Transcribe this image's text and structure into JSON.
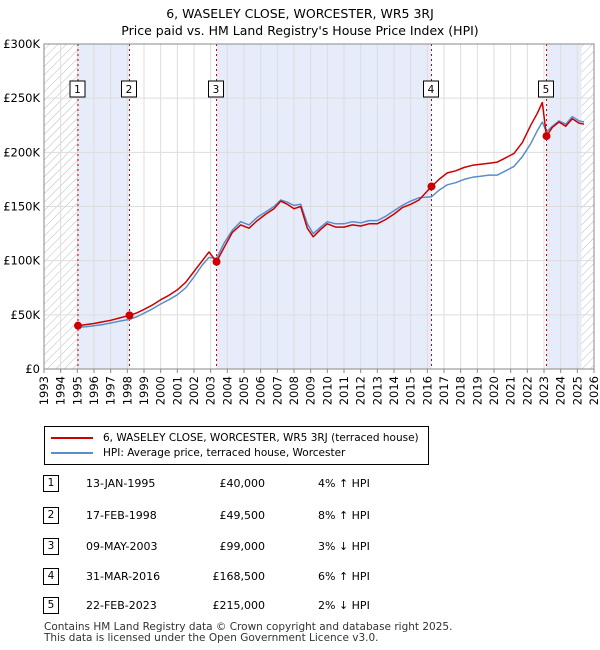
{
  "header": {
    "title_line1": "6, WASELEY CLOSE, WORCESTER, WR5 3RJ",
    "title_line2": "Price paid vs. HM Land Registry's House Price Index (HPI)"
  },
  "colors": {
    "property": "#cc0000",
    "hpi": "#5b8ec8",
    "shade": "#e6ecfa",
    "grid": "#dddddd",
    "hatch": "#bbbbbb"
  },
  "chart_data": {
    "type": "line",
    "title": "6, WASELEY CLOSE, WORCESTER, WR5 3RJ",
    "subtitle": "Price paid vs. HM Land Registry's House Price Index (HPI)",
    "xlim": [
      1993,
      2026
    ],
    "ylim": [
      0,
      300000
    ],
    "y_ticks": [
      0,
      50000,
      100000,
      150000,
      200000,
      250000,
      300000
    ],
    "y_tick_labels": [
      "£0",
      "£50K",
      "£100K",
      "£150K",
      "£200K",
      "£250K",
      "£300K"
    ],
    "x_ticks": [
      1993,
      1994,
      1995,
      1996,
      1997,
      1998,
      1999,
      2000,
      2001,
      2002,
      2003,
      2004,
      2005,
      2006,
      2007,
      2008,
      2009,
      2010,
      2011,
      2012,
      2013,
      2014,
      2015,
      2016,
      2017,
      2018,
      2019,
      2020,
      2021,
      2022,
      2023,
      2024,
      2025,
      2026
    ],
    "x_tick_labels": [
      "1993",
      "1994",
      "1995",
      "1996",
      "1997",
      "1998",
      "1999",
      "2000",
      "2001",
      "2002",
      "2003",
      "2004",
      "2005",
      "2006",
      "2007",
      "2008",
      "2009",
      "2010",
      "2011",
      "2012",
      "2013",
      "2014",
      "2015",
      "2016",
      "2017",
      "2018",
      "2019",
      "2020",
      "2021",
      "2022",
      "2023",
      "2024",
      "2025",
      "2026"
    ],
    "grid": true,
    "hatched_ranges": [
      [
        1993,
        1995.04
      ],
      [
        2025.25,
        2026
      ]
    ],
    "shaded_ranges": [
      [
        1995.04,
        1998.13
      ],
      [
        2003.35,
        2016.25
      ],
      [
        2023.15,
        2025.25
      ]
    ],
    "series": [
      {
        "name": "6, WASELEY CLOSE, WORCESTER, WR5 3RJ (terraced house)",
        "color": "#cc0000",
        "x": [
          1995.04,
          1995.5,
          1996,
          1996.5,
          1997,
          1997.5,
          1998.13,
          1998.6,
          1999,
          1999.5,
          2000,
          2000.5,
          2001,
          2001.5,
          2002,
          2002.5,
          2002.9,
          2003.35,
          2003.8,
          2004.3,
          2004.8,
          2005.3,
          2005.8,
          2006.3,
          2006.8,
          2007.2,
          2007.6,
          2008,
          2008.4,
          2008.8,
          2009.15,
          2009.6,
          2010,
          2010.5,
          2011,
          2011.5,
          2012,
          2012.5,
          2013,
          2013.5,
          2014,
          2014.5,
          2015,
          2015.5,
          2016.25,
          2016.7,
          2017.2,
          2017.7,
          2018.2,
          2018.7,
          2019.2,
          2019.7,
          2020.2,
          2020.7,
          2021.2,
          2021.7,
          2022.2,
          2022.6,
          2022.9,
          2023.15,
          2023.5,
          2023.9,
          2024.3,
          2024.7,
          2025.1,
          2025.4
        ],
        "values": [
          40000,
          41000,
          42000,
          43500,
          45000,
          47000,
          49500,
          52000,
          55000,
          59000,
          64000,
          68000,
          73000,
          80000,
          90000,
          100000,
          108000,
          99000,
          112000,
          126000,
          133000,
          130000,
          137000,
          143000,
          148000,
          155000,
          152000,
          148000,
          150000,
          130000,
          122000,
          129000,
          134000,
          131000,
          131000,
          133000,
          132000,
          134000,
          134000,
          138000,
          143000,
          149000,
          152000,
          156000,
          168500,
          175000,
          181000,
          183000,
          186000,
          188000,
          189000,
          190000,
          191000,
          195000,
          199000,
          209000,
          225000,
          236000,
          246000,
          215000,
          223000,
          228000,
          224000,
          231000,
          227000,
          226000
        ]
      },
      {
        "name": "HPI: Average price, terraced house, Worcester",
        "color": "#5b8ec8",
        "x": [
          1995.04,
          1995.5,
          1996,
          1996.5,
          1997,
          1997.5,
          1998.13,
          1998.6,
          1999,
          1999.5,
          2000,
          2000.5,
          2001,
          2001.5,
          2002,
          2002.5,
          2002.9,
          2003.35,
          2003.8,
          2004.3,
          2004.8,
          2005.3,
          2005.8,
          2006.3,
          2006.8,
          2007.2,
          2007.6,
          2008,
          2008.4,
          2008.8,
          2009.15,
          2009.6,
          2010,
          2010.5,
          2011,
          2011.5,
          2012,
          2012.5,
          2013,
          2013.5,
          2014,
          2014.5,
          2015,
          2015.5,
          2016.25,
          2016.7,
          2017.2,
          2017.7,
          2018.2,
          2018.7,
          2019.2,
          2019.7,
          2020.2,
          2020.7,
          2021.2,
          2021.7,
          2022.2,
          2022.6,
          2022.9,
          2023.15,
          2023.5,
          2023.9,
          2024.3,
          2024.7,
          2025.1,
          2025.4
        ],
        "values": [
          38500,
          39000,
          40000,
          41000,
          42500,
          44000,
          45800,
          48500,
          51500,
          55500,
          60000,
          64000,
          68500,
          75000,
          85000,
          96000,
          103000,
          102000,
          116000,
          128000,
          136000,
          133000,
          140000,
          145000,
          150000,
          156000,
          154000,
          151000,
          152000,
          134000,
          125000,
          131000,
          136000,
          134000,
          134000,
          136000,
          135000,
          137000,
          137000,
          141000,
          146000,
          151000,
          155000,
          158000,
          159000,
          165000,
          170000,
          172000,
          175000,
          177000,
          178000,
          179000,
          179000,
          183000,
          187000,
          196000,
          208000,
          220000,
          228000,
          219000,
          224000,
          229000,
          226000,
          233000,
          229000,
          228000
        ]
      }
    ],
    "sales": [
      {
        "label": "1",
        "x": 1995.04,
        "price": 40000
      },
      {
        "label": "2",
        "x": 1998.13,
        "price": 49500
      },
      {
        "label": "3",
        "x": 2003.35,
        "price": 99000
      },
      {
        "label": "4",
        "x": 2016.25,
        "price": 168500
      },
      {
        "label": "5",
        "x": 2023.15,
        "price": 215000
      }
    ]
  },
  "legend": {
    "property": "6, WASELEY CLOSE, WORCESTER, WR5 3RJ (terraced house)",
    "hpi": "HPI: Average price, terraced house, Worcester"
  },
  "transactions": [
    {
      "num": "1",
      "date": "13-JAN-1995",
      "price": "£40,000",
      "hpi": "4% ↑ HPI"
    },
    {
      "num": "2",
      "date": "17-FEB-1998",
      "price": "£49,500",
      "hpi": "8% ↑ HPI"
    },
    {
      "num": "3",
      "date": "09-MAY-2003",
      "price": "£99,000",
      "hpi": "3% ↓ HPI"
    },
    {
      "num": "4",
      "date": "31-MAR-2016",
      "price": "£168,500",
      "hpi": "6% ↑ HPI"
    },
    {
      "num": "5",
      "date": "22-FEB-2023",
      "price": "£215,000",
      "hpi": "2% ↓ HPI"
    }
  ],
  "footer": {
    "line1": "Contains HM Land Registry data © Crown copyright and database right 2025.",
    "line2": "This data is licensed under the Open Government Licence v3.0."
  }
}
